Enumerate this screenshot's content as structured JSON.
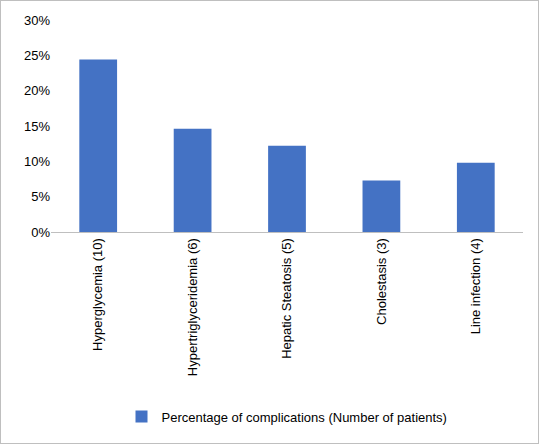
{
  "chart_data": {
    "type": "bar",
    "categories": [
      "Hyperglycemia (10)",
      "Hypertriglyceridemia (6)",
      "Hepatic Steatosis (5)",
      "Cholestasis (3)",
      "Line infection (4)"
    ],
    "series": [
      {
        "name": "Percentage of complications (Number of patients)",
        "color": "#4472c4",
        "values": [
          24.4,
          14.6,
          12.2,
          7.3,
          9.8
        ]
      }
    ],
    "ylim": [
      0,
      30
    ],
    "yticks": [
      {
        "value": 0,
        "label": "0%"
      },
      {
        "value": 5,
        "label": "5%"
      },
      {
        "value": 10,
        "label": "10%"
      },
      {
        "value": 15,
        "label": "15%"
      },
      {
        "value": 20,
        "label": "20%"
      },
      {
        "value": 25,
        "label": "25%"
      },
      {
        "value": 30,
        "label": "30%"
      }
    ],
    "grid": false,
    "legend": "bottom"
  }
}
